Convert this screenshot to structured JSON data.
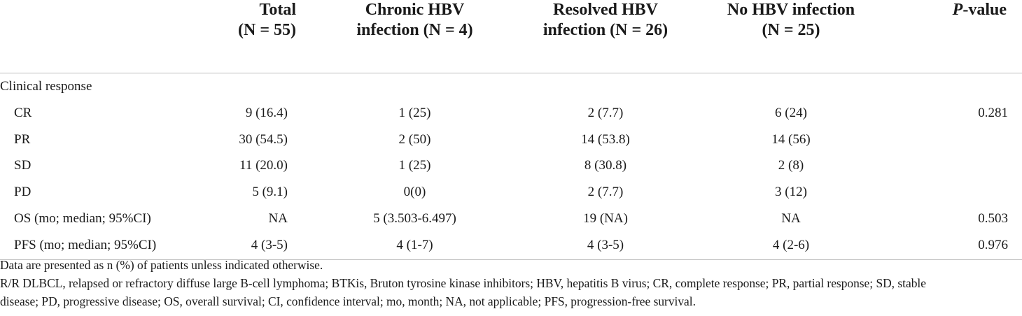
{
  "table": {
    "headers": [
      {
        "line1": "",
        "line2": ""
      },
      {
        "line1": "Total",
        "line2": "(N = 55)"
      },
      {
        "line1": "Chronic HBV",
        "line2": "infection (N = 4)"
      },
      {
        "line1": "Resolved HBV",
        "line2": "infection (N = 26)"
      },
      {
        "line1": "No HBV infection",
        "line2": "(N = 25)"
      },
      {
        "line1_italic": "P",
        "line1_rest": "-value",
        "line2": ""
      }
    ],
    "section_label": "Clinical response",
    "rows": [
      {
        "label": "CR",
        "total": "9 (16.4)",
        "chronic": "1 (25)",
        "resolved": "2 (7.7)",
        "none": "6 (24)",
        "p": "0.281"
      },
      {
        "label": "PR",
        "total": "30 (54.5)",
        "chronic": "2 (50)",
        "resolved": "14 (53.8)",
        "none": "14 (56)",
        "p": ""
      },
      {
        "label": "SD",
        "total": "11 (20.0)",
        "chronic": "1 (25)",
        "resolved": "8 (30.8)",
        "none": "2 (8)",
        "p": ""
      },
      {
        "label": "PD",
        "total": "5 (9.1)",
        "chronic": "0(0)",
        "resolved": "2 (7.7)",
        "none": "3 (12)",
        "p": ""
      },
      {
        "label": "OS (mo; median; 95%CI)",
        "total": "NA",
        "chronic": "5 (3.503-6.497)",
        "resolved": "19 (NA)",
        "none": "NA",
        "p": "0.503"
      },
      {
        "label": "PFS (mo; median; 95%CI)",
        "total": "4 (3-5)",
        "chronic": "4 (1-7)",
        "resolved": "4 (3-5)",
        "none": "4 (2-6)",
        "p": "0.976"
      }
    ]
  },
  "footnotes": {
    "line1": "Data are presented as n (%) of patients unless indicated otherwise.",
    "line2": "R/R DLBCL, relapsed or refractory diffuse large B-cell lymphoma; BTKis, Bruton tyrosine kinase inhibitors; HBV, hepatitis B virus; CR, complete response; PR, partial response; SD, stable",
    "line3": "disease; PD, progressive disease; OS, overall survival; CI, confidence interval; mo, month; NA, not applicable; PFS, progression-free survival."
  }
}
